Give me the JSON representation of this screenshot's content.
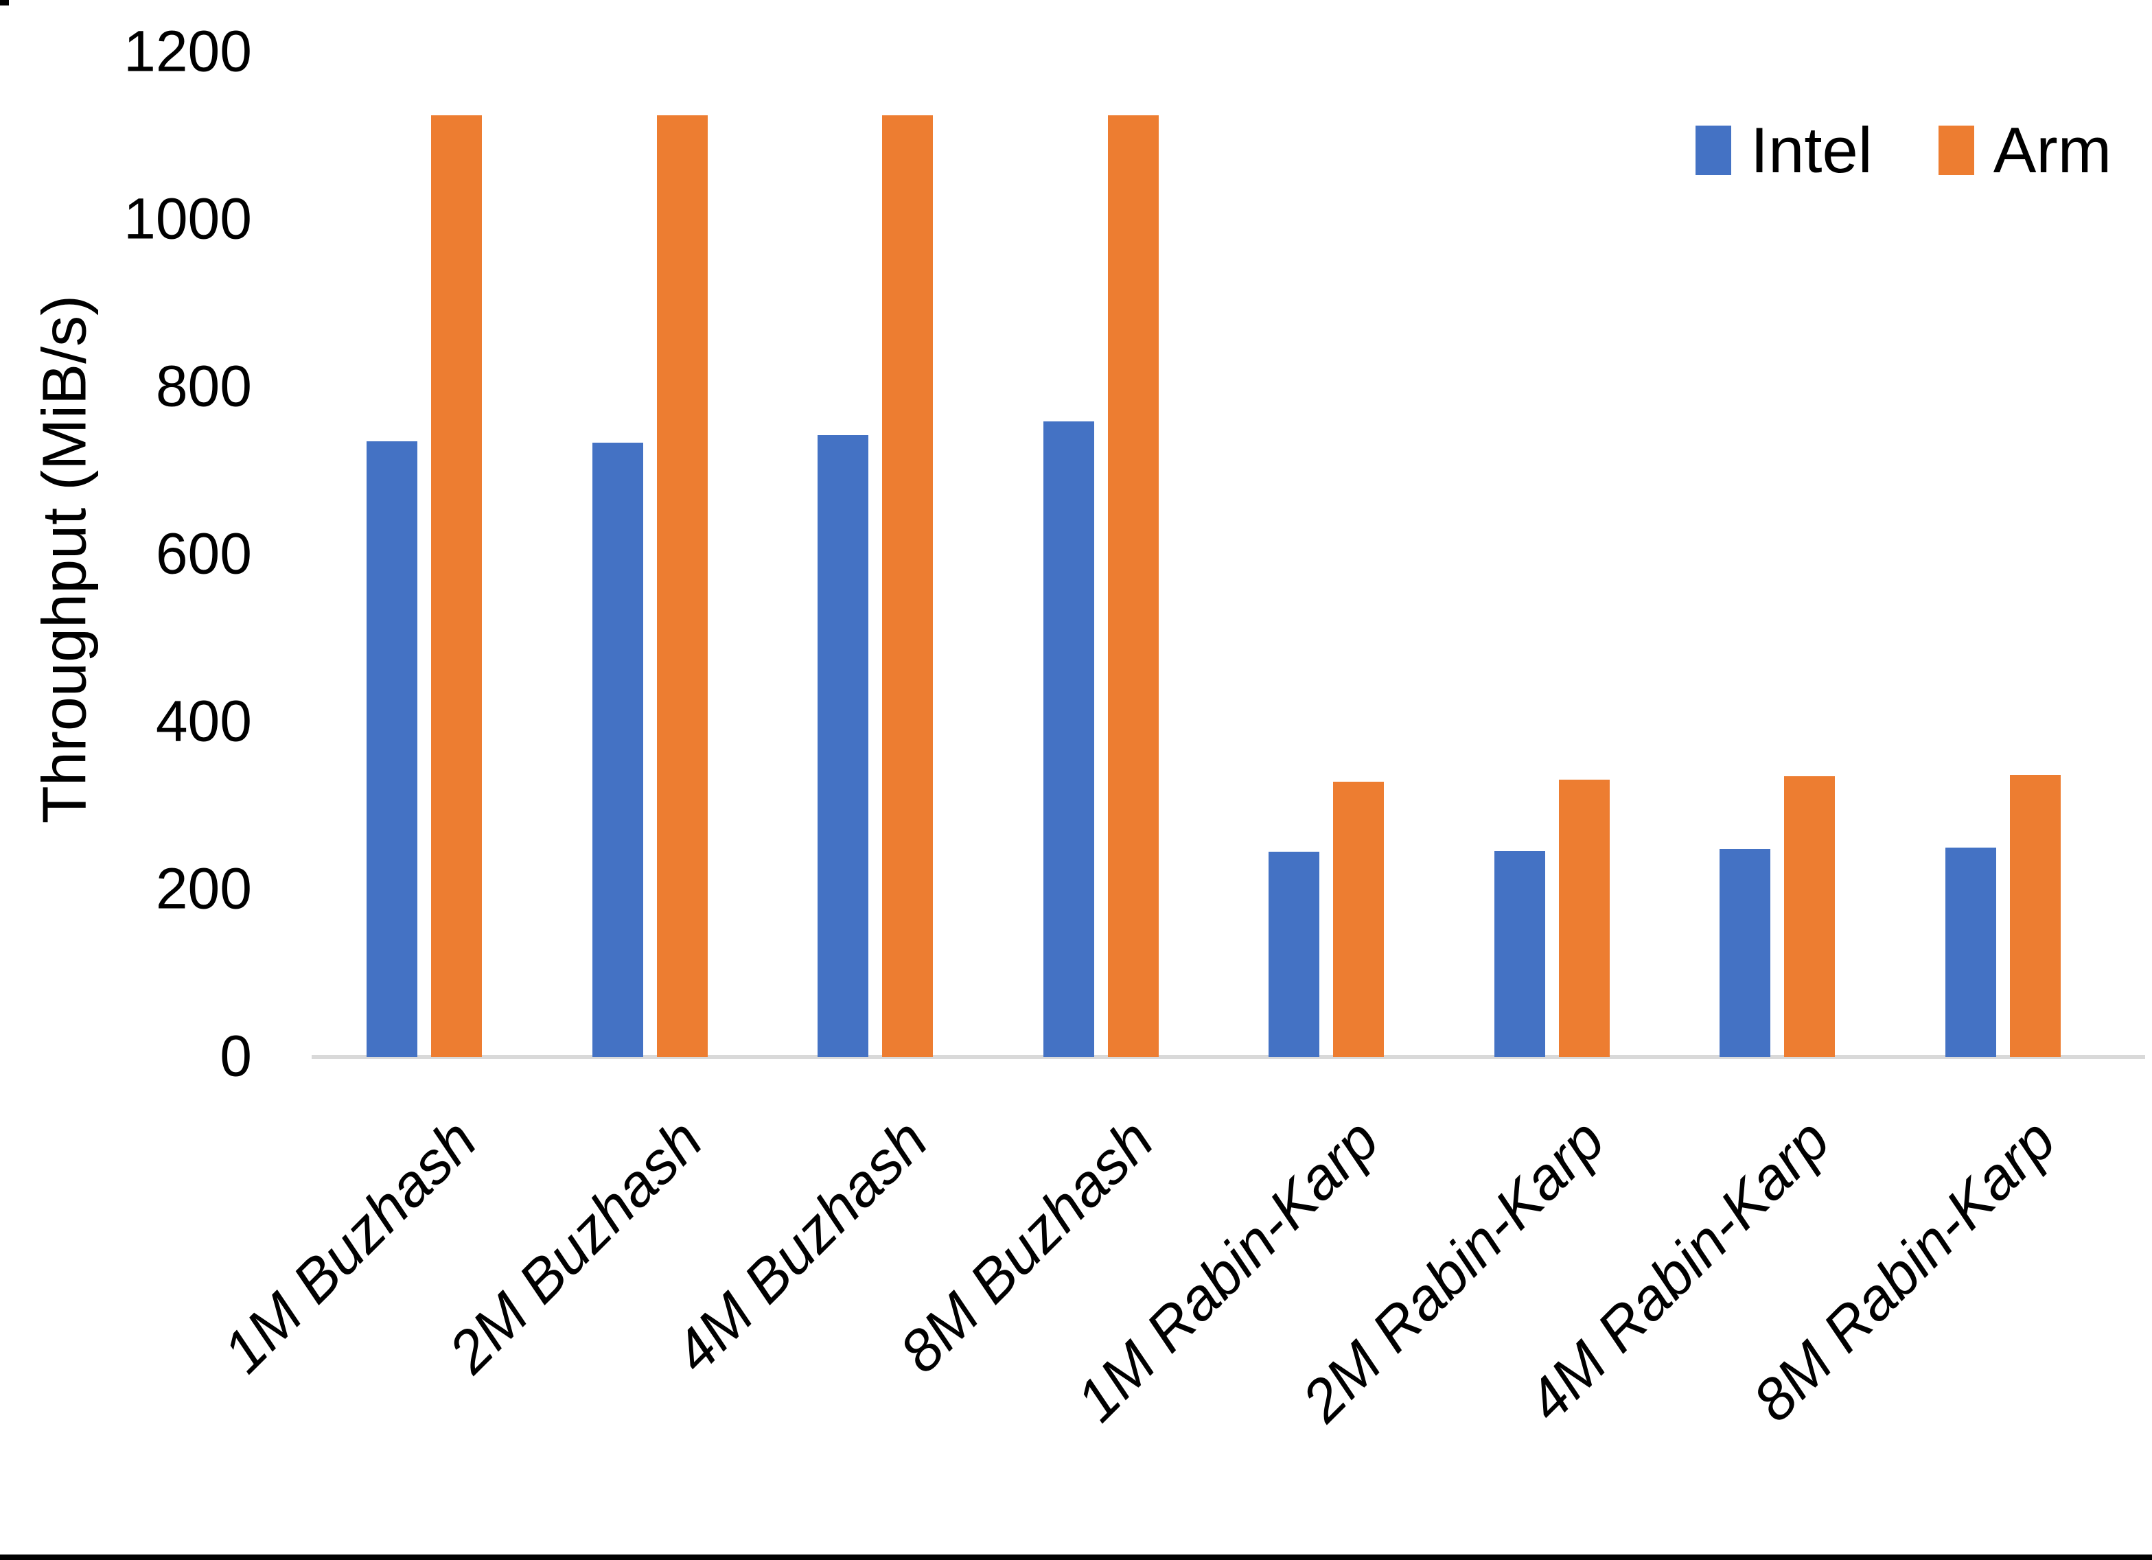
{
  "chart_data": {
    "type": "bar",
    "title": "",
    "xlabel": "",
    "ylabel": "Throughput (MiB/s)",
    "ylim": [
      0,
      1200
    ],
    "y_ticks": [
      0,
      200,
      400,
      600,
      800,
      1000,
      1200
    ],
    "grid": false,
    "legend_position": "top-right",
    "categories": [
      "1M Buzhash",
      "2M Buzhash",
      "4M Buzhash",
      "8M Buzhash",
      "1M Rabin-Karp",
      "2M Rabin-Karp",
      "4M Rabin-Karp",
      "8M Rabin-Karp"
    ],
    "series": [
      {
        "name": "Intel",
        "color": "#4472C4",
        "values": [
          735,
          734,
          743,
          759,
          245,
          246,
          248,
          250
        ]
      },
      {
        "name": "Arm",
        "color": "#ED7D31",
        "values": [
          1125,
          1125,
          1125,
          1125,
          329,
          331,
          335,
          337
        ]
      }
    ],
    "colors": {
      "axis_line": "#D9D9D9",
      "text": "#000000",
      "background": "#FFFFFF"
    }
  }
}
